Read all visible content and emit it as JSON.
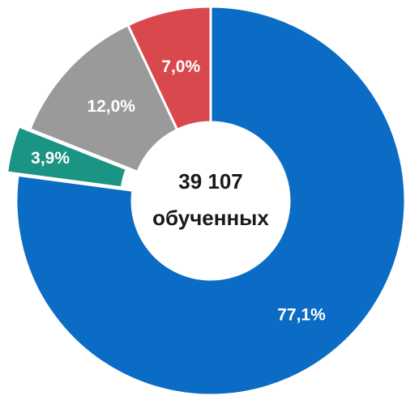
{
  "chart_data": {
    "type": "donut",
    "categories": [
      null,
      null,
      null,
      null
    ],
    "values": [
      77.1,
      3.9,
      12.0,
      7.0
    ],
    "value_labels": [
      "77,1%",
      "3,9%",
      "12,0%",
      "7,0%"
    ],
    "colors": [
      "#0b6cc5",
      "#1b9483",
      "#9a9a9a",
      "#d9484d"
    ],
    "center_text": [
      "39 107",
      "обученных"
    ],
    "exploded": [
      false,
      true,
      false,
      false
    ]
  }
}
